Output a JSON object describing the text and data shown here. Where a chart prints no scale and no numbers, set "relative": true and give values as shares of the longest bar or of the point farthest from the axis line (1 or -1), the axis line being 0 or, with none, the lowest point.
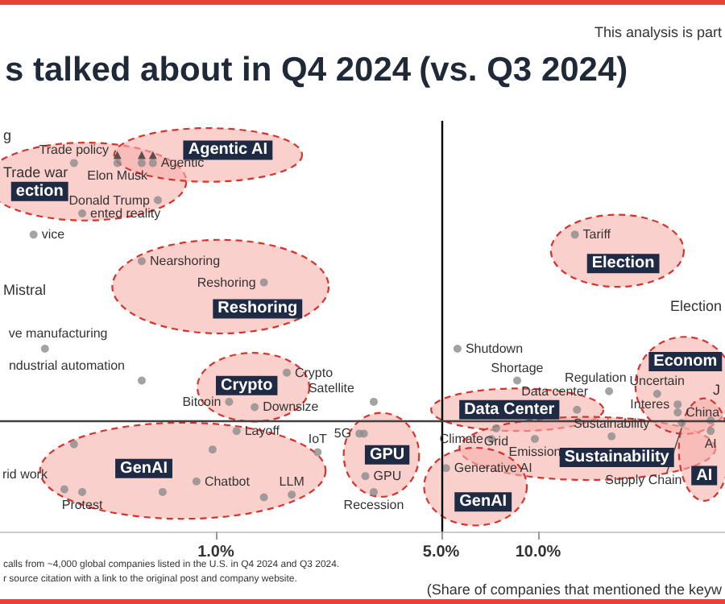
{
  "chart_data": {
    "type": "scatter",
    "title": "s talked about in Q4 2024",
    "subtitle": "(vs. Q3 2024)",
    "xlabel": "(Share of companies that mentioned the keyw",
    "relative": true,
    "log": "x",
    "xlim": [
      0.214,
      38
    ],
    "xticks": [
      {
        "value": 1,
        "label": "1.0%"
      },
      {
        "value": 5,
        "label": "5.0%"
      },
      {
        "value": 10,
        "label": "10.0%"
      }
    ],
    "tick_labels": "x",
    "grid": false,
    "marker": "circle",
    "ref_lines": [
      {
        "axis": "x",
        "value": 5,
        "color": "#000000"
      },
      {
        "axis": "y",
        "value": 0,
        "color": "#404040"
      }
    ],
    "annotations": [
      "This analysis is part",
      "Trade war",
      "Mistral",
      "Election",
      "g",
      "J",
      "calls from ~4,000 global companies listed in the U.S. in Q4 2024 and Q3 2024.",
      "r source citation with a link to the original post and company website.",
      {
        "text": "ented reality",
        "x": 0.385,
        "y": 0.78
      },
      {
        "text": "vice",
        "x": 0.272,
        "y": 0.7
      },
      {
        "text": "ve manufacturing",
        "x": 0.295,
        "y": 0.27
      },
      {
        "text": "ndustrial automation",
        "x": 0.589,
        "y": 0.15
      },
      {
        "text": "rid work",
        "x": 0.339,
        "y": -0.26
      },
      {
        "text": "Protest",
        "x": 0.385,
        "y": -0.27
      },
      {
        "text": "Layoff",
        "x": 1.16,
        "y": -0.04
      },
      {
        "text": "IoT",
        "x": 2.07,
        "y": -0.12
      },
      {
        "text": "5G",
        "x": 2.79,
        "y": -0.05
      },
      {
        "text": "Recession",
        "x": 3.09,
        "y": -0.27
      },
      {
        "text": "Satellite",
        "x": 3.09,
        "y": 0.07
      },
      {
        "text": "Downsize",
        "x": 1.32,
        "y": 0.05
      },
      {
        "text": "Shutdown",
        "x": 5.62,
        "y": 0.27
      },
      {
        "text": "Shortage",
        "x": 8.61,
        "y": 0.15
      },
      {
        "text": "Grid",
        "x": 7.41,
        "y": -0.03
      },
      {
        "text": "Regulation",
        "x": 16.6,
        "y": 0.11
      },
      {
        "text": "Supply Chain",
        "x": 27.9,
        "y": -0.01
      },
      {
        "text": "Trade policy",
        "x": 0.363,
        "y": 0.97
      },
      {
        "text": "Elon Musk",
        "x": 0.495,
        "y": 0.97
      },
      {
        "text": "Donald Trump",
        "x": 0.661,
        "y": 0.83
      },
      {
        "text": "Agentic",
        "x": 0.638,
        "y": 0.97
      },
      {
        "text": "Nearshoring",
        "x": 0.589,
        "y": 0.6
      },
      {
        "text": "Reshoring",
        "x": 1.41,
        "y": 0.52
      },
      {
        "text": "Crypto",
        "x": 1.66,
        "y": 0.18
      },
      {
        "text": "Bitcoin",
        "x": 1.1,
        "y": 0.07
      },
      {
        "text": "Chatbot",
        "x": 0.871,
        "y": -0.23
      },
      {
        "text": "LLM",
        "x": 1.72,
        "y": -0.28
      },
      {
        "text": "GPU",
        "x": 2.91,
        "y": -0.21
      },
      {
        "text": "Data center",
        "x": 13.2,
        "y": 0.04
      },
      {
        "text": "Climate",
        "x": 7.16,
        "y": -0.07
      },
      {
        "text": "Emission",
        "x": 9.77,
        "y": -0.07
      },
      {
        "text": "Sustainability",
        "x": 16.9,
        "y": -0.06
      },
      {
        "text": "Generative AI",
        "x": 5.18,
        "y": -0.18
      },
      {
        "text": "Tariff",
        "x": 13.0,
        "y": 0.7
      },
      {
        "text": "Uncertain",
        "x": 23.4,
        "y": 0.1
      },
      {
        "text": "Interes",
        "x": 27.1,
        "y": 0.06
      },
      {
        "text": "China",
        "x": 27.1,
        "y": 0.03
      },
      {
        "text": "AI",
        "x": 34.3,
        "y": -0.04
      }
    ],
    "series": [
      {
        "color": "#8c8c8c",
        "x": [
          0.385,
          0.272,
          0.295,
          0.589,
          0.339,
          0.385,
          1.16,
          2.07,
          2.79,
          3.09,
          3.09,
          1.32,
          5.62,
          8.61,
          7.41,
          16.6,
          27.9
        ],
        "values": [
          0.78,
          0.7,
          0.27,
          0.15,
          -0.26,
          -0.27,
          -0.04,
          -0.12,
          -0.05,
          -0.27,
          0.07,
          0.05,
          0.27,
          0.15,
          -0.03,
          0.11,
          -0.01
        ]
      },
      {
        "name": "ection",
        "color": "#8c8c8c",
        "x": [
          0.363,
          0.495,
          0.661
        ],
        "values": [
          0.97,
          0.97,
          0.83
        ]
      },
      {
        "name": "Agentic AI",
        "color": "#8c8c8c",
        "x": [
          0.589,
          0.638
        ],
        "values": [
          0.97,
          0.97
        ]
      },
      {
        "name": "Reshoring",
        "color": "#8c8c8c",
        "x": [
          0.589,
          1.41
        ],
        "values": [
          0.6,
          0.52
        ]
      },
      {
        "name": "Crypto",
        "color": "#8c8c8c",
        "x": [
          1.66,
          1.1
        ],
        "values": [
          0.18,
          0.07
        ]
      },
      {
        "name": "GenAI",
        "color": "#8c8c8c",
        "x": [
          0.363,
          0.977,
          0.871,
          0.684,
          1.41,
          1.72
        ],
        "values": [
          -0.09,
          -0.11,
          -0.23,
          -0.27,
          -0.29,
          -0.28
        ]
      },
      {
        "name": "GPU",
        "color": "#8c8c8c",
        "x": [
          2.88,
          2.91
        ],
        "values": [
          -0.05,
          -0.21
        ]
      },
      {
        "name": "Data Center",
        "color": "#8c8c8c",
        "x": [
          13.2
        ],
        "values": [
          0.04
        ]
      },
      {
        "name": "Sustainability",
        "color": "#8c8c8c",
        "x": [
          7.16,
          9.77,
          16.9
        ],
        "values": [
          -0.07,
          -0.07,
          -0.06
        ]
      },
      {
        "name": "GenAI",
        "color": "#8c8c8c",
        "x": [
          5.18
        ],
        "values": [
          -0.18
        ]
      },
      {
        "name": "Election",
        "color": "#8c8c8c",
        "x": [
          13.0
        ],
        "values": [
          0.7
        ]
      },
      {
        "name": "Econom",
        "color": "#8c8c8c",
        "x": [
          23.4,
          27.1,
          27.1
        ],
        "values": [
          0.1,
          0.06,
          0.03
        ]
      },
      {
        "name": "AI",
        "color": "#8c8c8c",
        "x": [
          34.3,
          34.3
        ],
        "values": [
          0,
          -0.04
        ]
      },
      {
        "color": "#333333",
        "marker": "triangle",
        "x": [
          0.495,
          0.589,
          0.638
        ],
        "values": [
          1,
          1,
          1
        ]
      }
    ]
  }
}
